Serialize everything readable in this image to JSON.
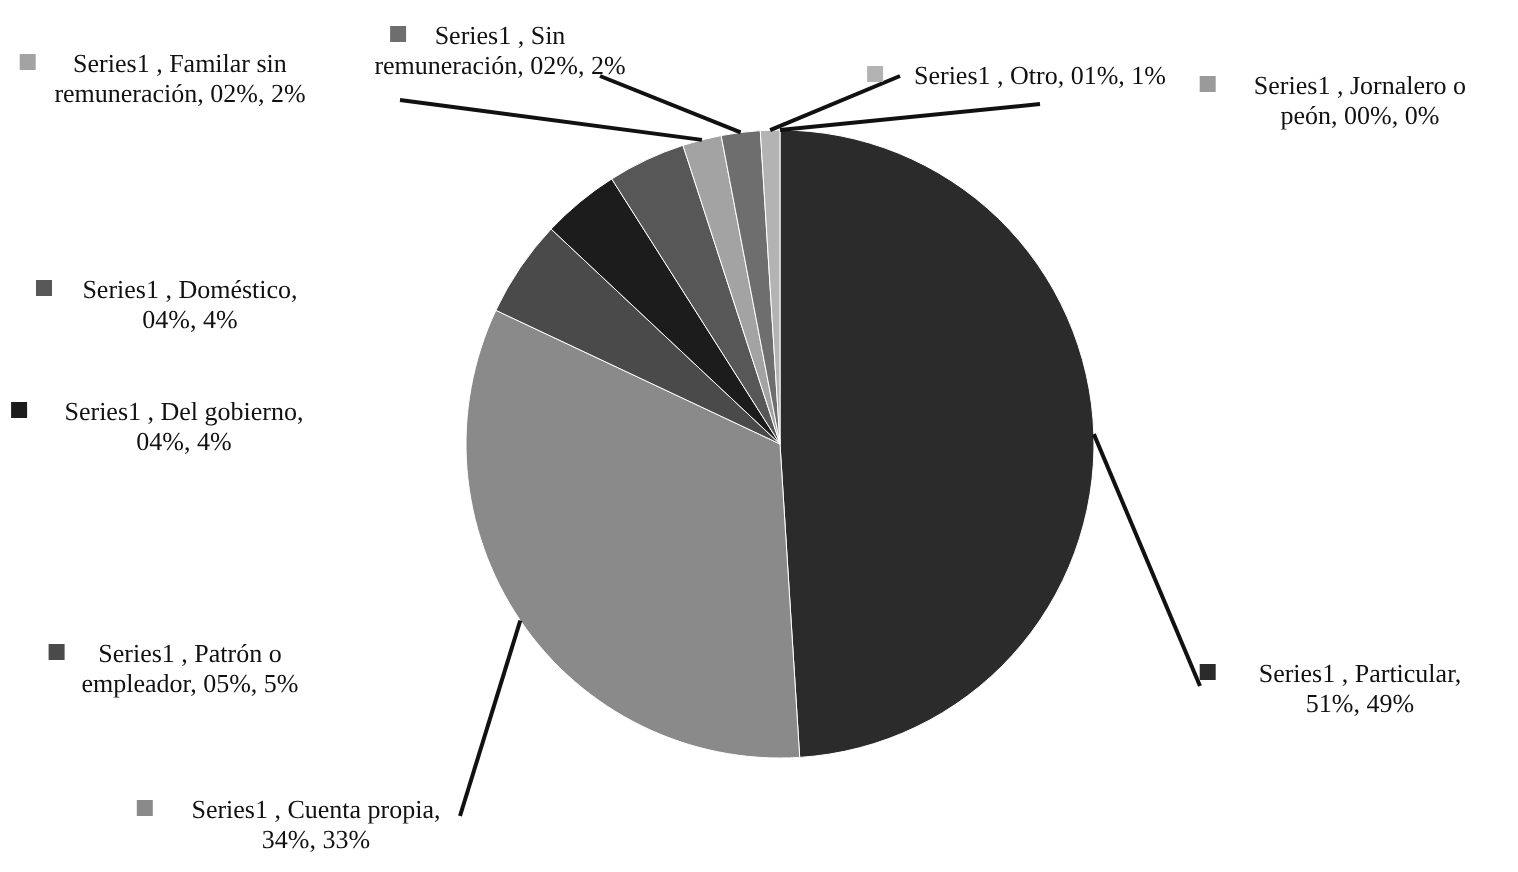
{
  "chart_data": {
    "type": "pie",
    "categories": [
      "Series1 , Particular, 51%, 49%",
      "Series1 , Cuenta propia, 34%, 33%",
      "Series1 , Patrón o empleador, 05%, 5%",
      "Series1 , Del gobierno, 04%, 4%",
      "Series1 , Doméstico, 04%, 4%",
      "Series1 , Familar sin remuneración, 02%, 2%",
      "Series1 , Sin remuneración, 02%, 2%",
      "Series1 , Otro, 01%, 1%",
      "Series1 , Jornalero o peón, 00%, 0%"
    ],
    "values": [
      49,
      33,
      5,
      4,
      4,
      2,
      2,
      1,
      0
    ],
    "colors": [
      "#2b2b2b",
      "#8a8a8a",
      "#4a4a4a",
      "#1c1c1c",
      "#575757",
      "#a3a3a3",
      "#6e6e6e",
      "#b3b3b3",
      "#9a9a9a"
    ],
    "legend": "left"
  }
}
